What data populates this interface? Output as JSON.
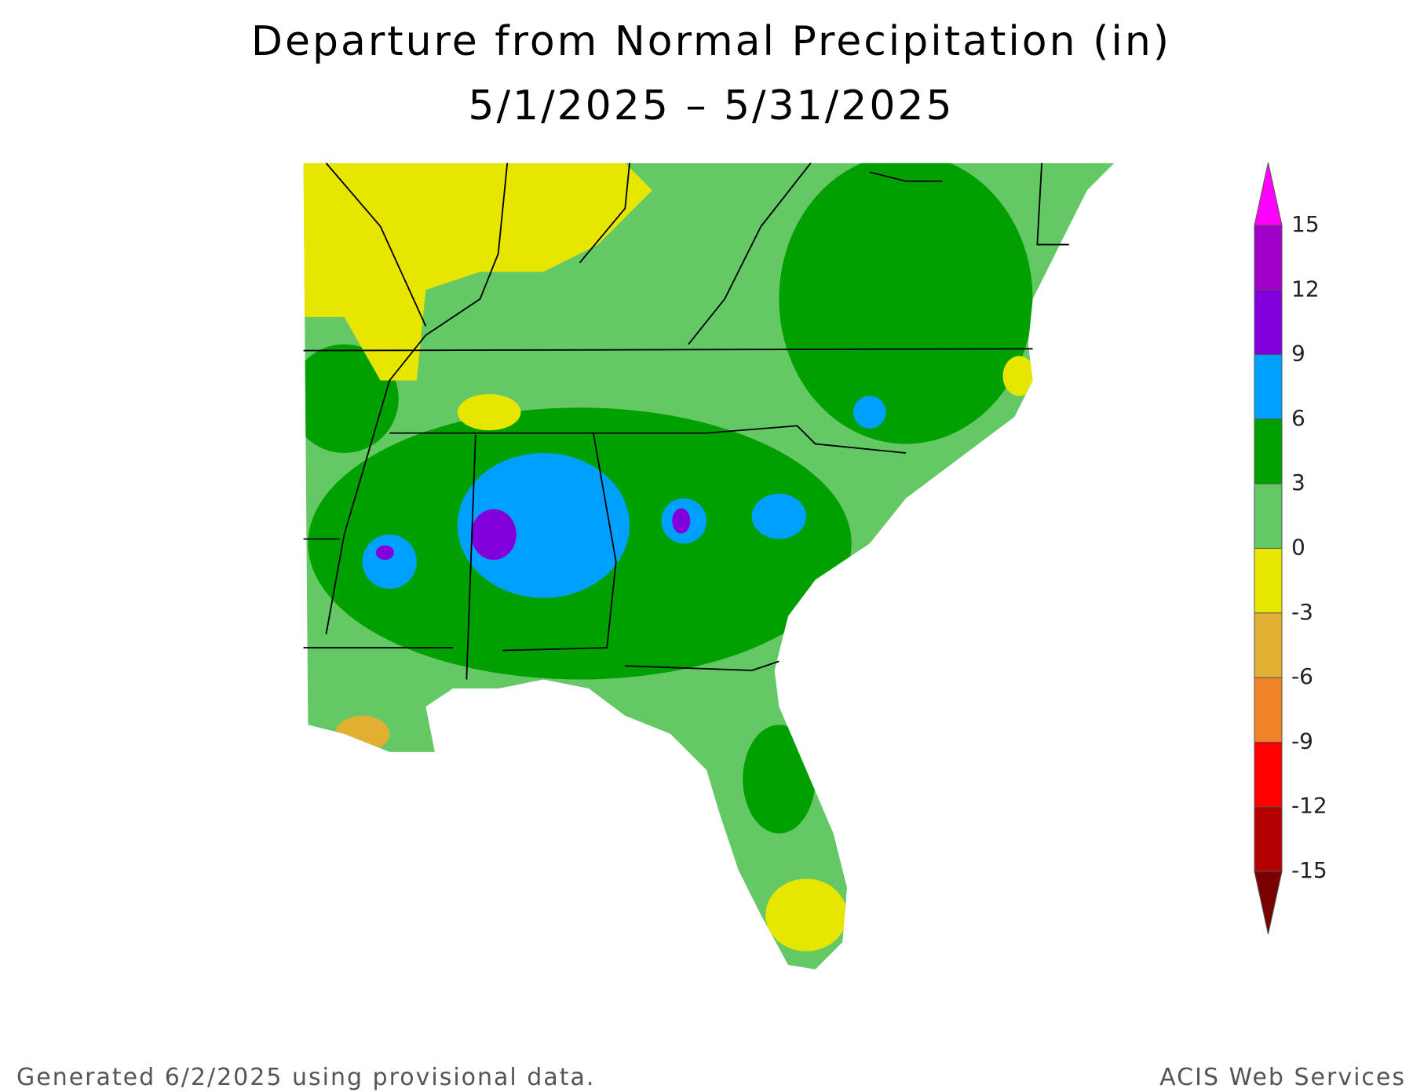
{
  "title": [
    "Departure from Normal Precipitation (in)",
    "5/1/2025 – 5/31/2025"
  ],
  "legend": {
    "ticks": [
      -15,
      -12,
      -9,
      -6,
      -3,
      0,
      3,
      6,
      9,
      12,
      15
    ],
    "colors": [
      "#780000",
      "#b40000",
      "#ff0000",
      "#f08228",
      "#e1af32",
      "#e6e600",
      "#64c864",
      "#00a000",
      "#00a0ff",
      "#8200dc",
      "#a000c8",
      "#ff00ff"
    ]
  },
  "footer": {
    "left": "Generated 6/2/2025 using provisional data.",
    "right": "ACIS Web Services"
  }
}
